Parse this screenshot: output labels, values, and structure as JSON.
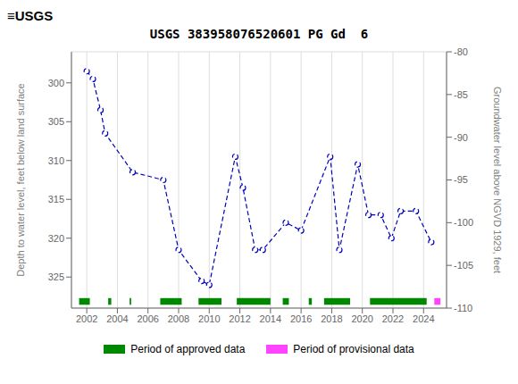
{
  "chart_data": {
    "type": "line",
    "title": "USGS 383958076520601 PG Gd  6",
    "annotations": [
      "≡USGS"
    ],
    "ylabel": "Depth to water level, feet below land surface",
    "y2label": "Groundwater level above NGVD 1929, feet",
    "x": [
      2002.0,
      2002.4,
      2002.9,
      2003.2,
      2005.0,
      2007.0,
      2008.0,
      2009.5,
      2010.0,
      2011.7,
      2012.2,
      2013.0,
      2013.5,
      2015.0,
      2016.0,
      2017.9,
      2018.5,
      2019.7,
      2020.4,
      2021.2,
      2021.9,
      2022.5,
      2023.5,
      2024.5
    ],
    "values": [
      298.5,
      299.5,
      303.5,
      306.5,
      311.5,
      312.5,
      321.5,
      325.5,
      326.0,
      309.5,
      313.5,
      321.5,
      321.5,
      318.0,
      319.0,
      309.5,
      321.5,
      310.5,
      317.0,
      317.0,
      320.0,
      316.5,
      316.5,
      320.5
    ],
    "color": "#0000bb",
    "marker": "circle",
    "line_style": "dashed",
    "xlim": [
      2001.0,
      2025.5
    ],
    "xticks": [
      2002,
      2004,
      2006,
      2008,
      2010,
      2012,
      2014,
      2016,
      2018,
      2020,
      2022,
      2024
    ],
    "ylim": [
      329,
      296
    ],
    "yticks": [
      300,
      305,
      310,
      315,
      320,
      325
    ],
    "y2lim": [
      -110,
      -80
    ],
    "y2ticks": [
      -80,
      -85,
      -90,
      -95,
      -100,
      -105,
      -110
    ],
    "grid": true,
    "legend": "bottom",
    "periods": [
      {
        "name": "Period of approved data",
        "color": "#008800",
        "ranges": [
          [
            2001.5,
            2002.2
          ],
          [
            2003.4,
            2003.6
          ],
          [
            2004.8,
            2004.9
          ],
          [
            2006.8,
            2008.2
          ],
          [
            2009.3,
            2010.8
          ],
          [
            2011.8,
            2014.0
          ],
          [
            2014.8,
            2015.2
          ],
          [
            2016.5,
            2016.7
          ],
          [
            2017.5,
            2019.2
          ],
          [
            2020.5,
            2024.2
          ]
        ]
      },
      {
        "name": "Period of provisional data",
        "color": "#ff44ff",
        "ranges": [
          [
            2024.7,
            2025.1
          ]
        ]
      }
    ]
  }
}
